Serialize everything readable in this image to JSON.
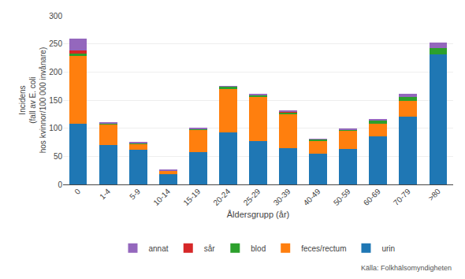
{
  "chart_data": {
    "type": "bar",
    "stacked": true,
    "xlabel": "Åldersgrupp (år)",
    "ylabel": "Incidens\n(fall av E. coli\nhos kvinnor/100 000 invånare)",
    "categories": [
      "0",
      "1-4",
      "5-9",
      "10-14",
      "15-19",
      "20-24",
      "25-29",
      "30-39",
      "40-49",
      "50-59",
      "60-69",
      "70-79",
      ">80"
    ],
    "series": [
      {
        "name": "urin",
        "values": [
          108,
          70,
          62,
          18,
          58,
          92,
          77,
          65,
          55,
          63,
          86,
          120,
          232
        ]
      },
      {
        "name": "feces/rectum",
        "values": [
          120,
          37,
          10,
          7,
          40,
          78,
          80,
          60,
          23,
          33,
          22,
          28,
          0
        ]
      },
      {
        "name": "blod",
        "values": [
          5,
          2,
          1,
          0,
          1,
          4,
          2,
          3,
          2,
          2,
          5,
          8,
          10
        ]
      },
      {
        "name": "sår",
        "values": [
          5,
          0,
          0,
          0,
          0,
          0,
          0,
          1,
          0,
          0,
          0,
          0,
          0
        ]
      },
      {
        "name": "annat",
        "values": [
          22,
          2,
          2,
          2,
          1,
          1,
          1,
          2,
          1,
          2,
          4,
          5,
          10
        ]
      }
    ],
    "ylim": [
      0,
      300
    ],
    "yticks": [
      0,
      50,
      100,
      150,
      200,
      250,
      300
    ],
    "grid": true,
    "legend": "bottom",
    "annotations": [
      "Källa: Folkhälsomyndigheten"
    ]
  }
}
